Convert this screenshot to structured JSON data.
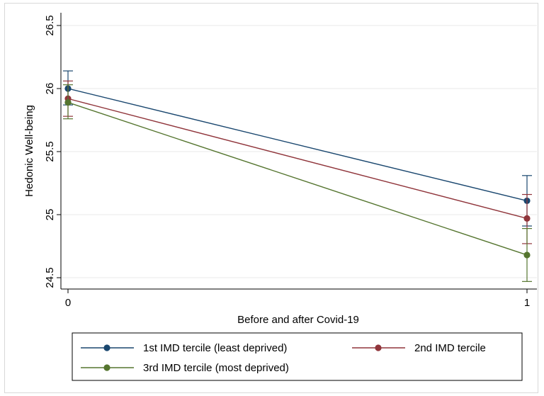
{
  "chart_data": {
    "type": "line",
    "title": "",
    "xlabel": "Before and after Covid-19",
    "ylabel": "Hedonic Well-being",
    "x": [
      0,
      1
    ],
    "x_tick_labels": [
      "0",
      "1"
    ],
    "xlim": [
      0,
      1
    ],
    "ylim": [
      24.5,
      26.5
    ],
    "y_ticks": [
      24.5,
      25,
      25.5,
      26,
      26.5
    ],
    "y_tick_labels": [
      "24.5",
      "25",
      "25.5",
      "26",
      "26.5"
    ],
    "grid": "horizontal",
    "legend_position": "bottom",
    "error_bars": true,
    "series": [
      {
        "name": "1st IMD tercile (least deprived)",
        "color": "#1a476f",
        "values": [
          26.0,
          25.11
        ],
        "ci_low": [
          25.87,
          24.91
        ],
        "ci_high": [
          26.14,
          25.31
        ]
      },
      {
        "name": "2nd IMD tercile",
        "color": "#90353b",
        "values": [
          25.92,
          24.97
        ],
        "ci_low": [
          25.78,
          24.77
        ],
        "ci_high": [
          26.06,
          25.16
        ]
      },
      {
        "name": "3rd IMD tercile (most deprived)",
        "color": "#55752f",
        "values": [
          25.89,
          24.68
        ],
        "ci_low": [
          25.76,
          24.47
        ],
        "ci_high": [
          26.03,
          24.89
        ]
      }
    ]
  }
}
